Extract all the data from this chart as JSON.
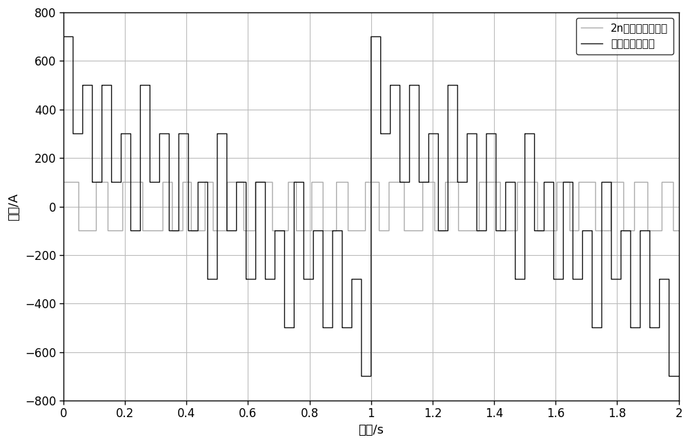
{
  "xlabel": "时间/s",
  "ylabel": "幅値/A",
  "xlim": [
    0,
    2
  ],
  "ylim": [
    -800,
    800
  ],
  "yticks": [
    -800,
    -600,
    -400,
    -200,
    0,
    200,
    400,
    600,
    800
  ],
  "xticks": [
    0,
    0.2,
    0.4,
    0.6,
    0.8,
    1.0,
    1.2,
    1.4,
    1.6,
    1.8,
    2.0
  ],
  "xtick_labels": [
    "0",
    "0.2",
    "0.4",
    "0.6",
    "0.8",
    "1",
    "1.2",
    "1.4",
    "1.6",
    "1.8",
    "2"
  ],
  "legend1": "方波叠加后信号",
  "legend2": "2n序列伪随机信号",
  "black_color": "#111111",
  "gray_color": "#aaaaaa",
  "grid_color": "#bbbbbb",
  "bg_color": "#ffffff",
  "lw_black": 1.0,
  "lw_gray": 1.0,
  "figsize": [
    10.0,
    6.44
  ],
  "dpi": 100,
  "black_freqs": [
    1.0,
    2.0,
    4.0,
    8.0,
    16.0
  ],
  "black_amps": [
    200,
    100,
    100,
    100,
    200
  ],
  "black_phases": [
    0.0,
    0.0,
    0.0,
    0.0,
    0.0
  ],
  "gray_chip_rate": 32,
  "gray_amplitude": 100,
  "gray_seed": 7
}
